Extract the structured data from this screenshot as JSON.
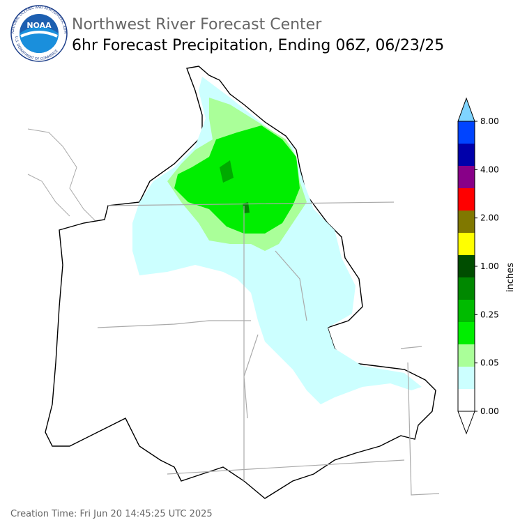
{
  "header": {
    "title": "Northwest River Forecast Center",
    "subtitle": "6hr Forecast Precipitation, Ending 06Z, 06/23/25"
  },
  "logo": {
    "text": "NOAA",
    "ring_top": "NATIONAL OCEANIC AND ATMOSPHERIC ADMINISTRATION",
    "ring_bottom": "U.S. DEPARTMENT OF COMMERCE"
  },
  "colorbar": {
    "label": "inches",
    "ticks": [
      {
        "value": 0,
        "label": "0.00"
      },
      {
        "value": 0.05,
        "label": "0.05"
      },
      {
        "value": 0.25,
        "label": "0.25"
      },
      {
        "value": 1,
        "label": "1.00"
      },
      {
        "value": 2,
        "label": "2.00"
      },
      {
        "value": 4,
        "label": "4.00"
      },
      {
        "value": 8,
        "label": "8.00"
      }
    ],
    "colors": [
      "#ffffff",
      "#ccffff",
      "#aaff99",
      "#00ee00",
      "#00bb00",
      "#008800",
      "#004d00",
      "#ffff00",
      "#807800",
      "#ff0000",
      "#880088",
      "#0000aa",
      "#0044ff"
    ],
    "over_color": "#7fd4ff",
    "under_color": "#ffffff"
  },
  "footer": {
    "text": "Creation Time: Fri Jun 20 14:45:25 UTC 2025"
  }
}
